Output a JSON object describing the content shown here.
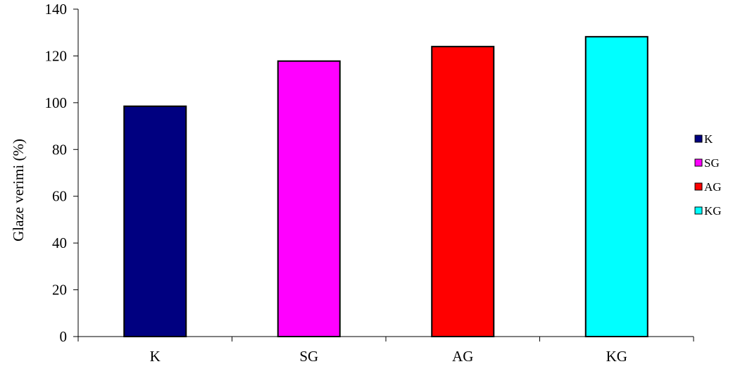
{
  "chart_data": {
    "type": "bar",
    "title": "",
    "xlabel": "",
    "ylabel": "Glaze verimi (%)",
    "categories": [
      "K",
      "SG",
      "AG",
      "KG"
    ],
    "values": [
      98.5,
      117.8,
      124,
      128.2
    ],
    "colors": [
      "#000080",
      "#ff00ff",
      "#ff0000",
      "#00ffff"
    ],
    "ylim": [
      0,
      140
    ],
    "yticks": [
      0,
      20,
      40,
      60,
      80,
      100,
      120,
      140
    ],
    "grid": false,
    "legend": {
      "position": "right",
      "entries": [
        "K",
        "SG",
        "AG",
        "KG"
      ]
    }
  }
}
